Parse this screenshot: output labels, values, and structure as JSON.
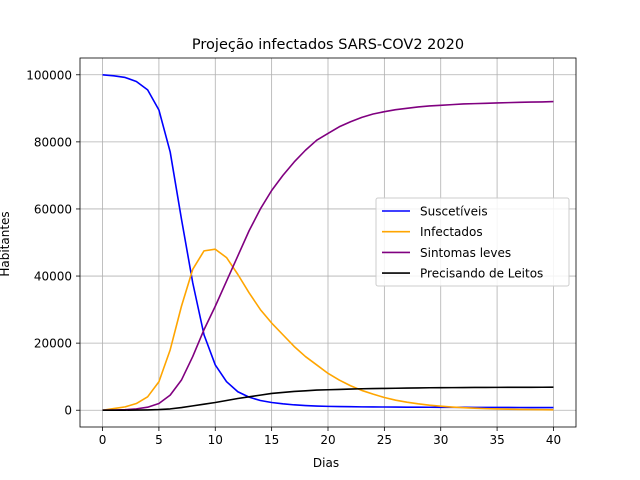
{
  "chart_data": {
    "type": "line",
    "title": "Projeção infectados SARS-COV2 2020",
    "xlabel": "Dias",
    "ylabel": "Habitantes",
    "xlim": [
      -2,
      42
    ],
    "ylim": [
      -5000,
      105000
    ],
    "xticks": [
      0,
      5,
      10,
      15,
      20,
      25,
      30,
      35,
      40
    ],
    "yticks": [
      0,
      20000,
      40000,
      60000,
      80000,
      100000
    ],
    "xtick_labels": [
      "0",
      "5",
      "10",
      "15",
      "20",
      "25",
      "30",
      "35",
      "40"
    ],
    "ytick_labels": [
      "0",
      "20000",
      "40000",
      "60000",
      "80000",
      "100000"
    ],
    "grid": true,
    "legend_position": "center-right",
    "x": [
      0,
      1,
      2,
      3,
      4,
      5,
      6,
      7,
      8,
      9,
      10,
      11,
      12,
      13,
      14,
      15,
      16,
      17,
      18,
      19,
      20,
      21,
      22,
      23,
      24,
      25,
      26,
      27,
      28,
      29,
      30,
      31,
      32,
      33,
      34,
      35,
      36,
      37,
      38,
      39,
      40
    ],
    "series": [
      {
        "name": "Suscetíveis",
        "color": "#0000ff",
        "values": [
          100000,
          99700,
          99200,
          98000,
          95500,
          89500,
          77000,
          57000,
          38000,
          22500,
          13500,
          8500,
          5500,
          3900,
          2900,
          2300,
          1900,
          1600,
          1400,
          1250,
          1150,
          1100,
          1050,
          1000,
          980,
          960,
          940,
          920,
          900,
          890,
          880,
          870,
          860,
          850,
          840,
          830,
          820,
          810,
          800,
          790,
          780
        ]
      },
      {
        "name": "Infectados",
        "color": "#ffa500",
        "values": [
          0,
          500,
          1000,
          2000,
          4000,
          8500,
          18000,
          31000,
          42000,
          47500,
          48000,
          45500,
          40500,
          35000,
          30000,
          26000,
          22500,
          19000,
          16000,
          13500,
          11000,
          9000,
          7300,
          5900,
          4800,
          3800,
          3000,
          2400,
          1900,
          1500,
          1200,
          950,
          750,
          600,
          480,
          380,
          300,
          250,
          200,
          160,
          130
        ]
      },
      {
        "name": "Sintomas leves",
        "color": "#800080",
        "values": [
          0,
          50,
          150,
          400,
          900,
          2000,
          4500,
          9000,
          16000,
          24000,
          31000,
          38500,
          46000,
          53500,
          60000,
          65500,
          70000,
          74000,
          77500,
          80500,
          82500,
          84500,
          86000,
          87300,
          88300,
          89000,
          89600,
          90000,
          90400,
          90700,
          90900,
          91100,
          91300,
          91400,
          91500,
          91600,
          91700,
          91800,
          91850,
          91900,
          92000
        ]
      },
      {
        "name": "Precisando de Leitos",
        "color": "#000000",
        "values": [
          0,
          5,
          20,
          50,
          100,
          200,
          400,
          800,
          1300,
          1800,
          2300,
          2900,
          3500,
          4000,
          4500,
          5000,
          5300,
          5600,
          5800,
          6000,
          6100,
          6200,
          6300,
          6400,
          6450,
          6500,
          6550,
          6600,
          6650,
          6700,
          6720,
          6740,
          6760,
          6780,
          6800,
          6810,
          6820,
          6830,
          6840,
          6850,
          6860
        ]
      }
    ]
  }
}
